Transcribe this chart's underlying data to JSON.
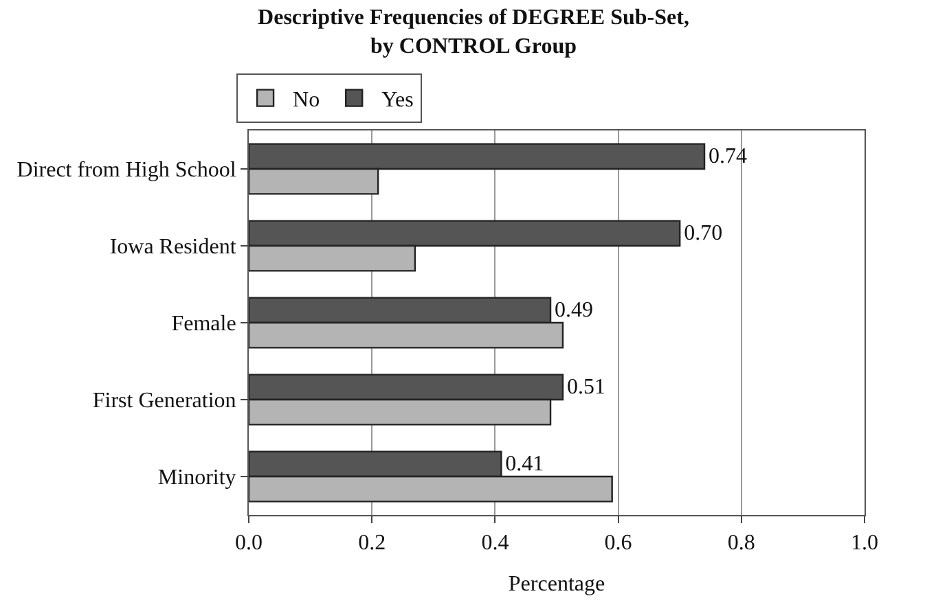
{
  "chart_data": {
    "type": "bar",
    "orientation": "horizontal",
    "title": "Descriptive Frequencies of DEGREE Sub-Set,\nby CONTROL Group",
    "xlabel": "Percentage",
    "categories": [
      "Direct from High School",
      "Iowa Resident",
      "Female",
      "First Generation",
      "Minority"
    ],
    "series": [
      {
        "name": "No",
        "color": "#b4b4b4",
        "values": [
          0.21,
          0.27,
          0.51,
          0.49,
          0.59
        ]
      },
      {
        "name": "Yes",
        "color": "#555555",
        "values": [
          0.74,
          0.7,
          0.49,
          0.51,
          0.41
        ],
        "value_labels": [
          "0.74",
          "0.70",
          "0.49",
          "0.51",
          "0.41"
        ]
      }
    ],
    "xlim": [
      0,
      1
    ],
    "xticks": [
      {
        "value": 0,
        "label": "0.0"
      },
      {
        "value": 0.2,
        "label": "0.2"
      },
      {
        "value": 0.4,
        "label": "0.4"
      },
      {
        "value": 0.6,
        "label": "0.6"
      },
      {
        "value": 0.8,
        "label": "0.8"
      },
      {
        "value": 1,
        "label": "1.0"
      }
    ],
    "grid": "x",
    "legend": "top left"
  }
}
